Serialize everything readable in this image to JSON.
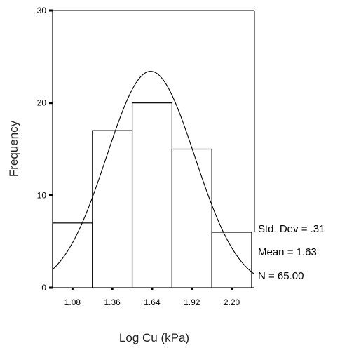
{
  "chart_data": {
    "type": "bar",
    "subtype": "histogram with fitted normal curve",
    "xlabel": "Log Cu (kPa)",
    "ylabel": "Frequency",
    "x_tick_labels": [
      "1.08",
      "1.36",
      "1.64",
      "1.92",
      "2.20"
    ],
    "x_ticks": [
      1.08,
      1.36,
      1.64,
      1.92,
      2.2
    ],
    "y_ticks": [
      0,
      10,
      20,
      30
    ],
    "y_tick_labels": [
      "0",
      "10",
      "20",
      "30"
    ],
    "xlim": [
      0.94,
      2.36
    ],
    "ylim": [
      0,
      30
    ],
    "bin_width": 0.28,
    "bins": [
      {
        "center": 1.08,
        "value": 7
      },
      {
        "center": 1.36,
        "value": 17
      },
      {
        "center": 1.64,
        "value": 20
      },
      {
        "center": 1.92,
        "value": 15
      },
      {
        "center": 2.2,
        "value": 6
      }
    ],
    "normal_curve": {
      "mean": 1.63,
      "std_dev": 0.31,
      "n": 65
    },
    "stats": [
      "Std. Dev = .31",
      "Mean = 1.63",
      "N = 65.00"
    ],
    "grid": false,
    "legend": "none"
  }
}
